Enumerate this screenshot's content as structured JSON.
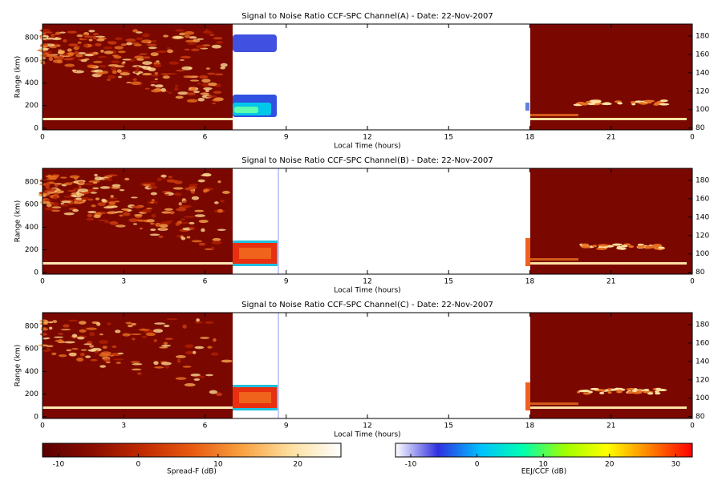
{
  "chart_data": [
    {
      "type": "heatmap",
      "title": "Signal to Noise Ratio CCF-SPC Channel(A) - Date: 22-Nov-2007",
      "xlabel": "Local Time (hours)",
      "ylabel": "Range (km)",
      "xlim": [
        0,
        24
      ],
      "xticks": [
        0,
        3,
        6,
        9,
        12,
        15,
        18,
        21,
        {
          "value": 24,
          "label": "0"
        }
      ],
      "ylim": [
        -15,
        920
      ],
      "yticks": [
        0,
        200,
        400,
        600,
        800
      ],
      "y2lim": [
        78,
        193
      ],
      "y2ticks": [
        80,
        100,
        120,
        140,
        160,
        180
      ]
    },
    {
      "type": "heatmap",
      "title": "Signal to Noise Ratio CCF-SPC Channel(B) - Date: 22-Nov-2007",
      "xlabel": "Local Time (hours)",
      "ylabel": "Range (km)",
      "xlim": [
        0,
        24
      ],
      "xticks": [
        0,
        3,
        6,
        9,
        12,
        15,
        18,
        21,
        {
          "value": 24,
          "label": "0"
        }
      ],
      "ylim": [
        -15,
        920
      ],
      "yticks": [
        0,
        200,
        400,
        600,
        800
      ],
      "y2lim": [
        78,
        193
      ],
      "y2ticks": [
        80,
        100,
        120,
        140,
        160,
        180
      ]
    },
    {
      "type": "heatmap",
      "title": "Signal to Noise Ratio CCF-SPC Channel(C) - Date: 22-Nov-2007",
      "xlabel": "Local Time (hours)",
      "ylabel": "Range (km)",
      "xlim": [
        0,
        24
      ],
      "xticks": [
        0,
        3,
        6,
        9,
        12,
        15,
        18,
        21,
        {
          "value": 24,
          "label": "0"
        }
      ],
      "ylim": [
        -15,
        920
      ],
      "yticks": [
        0,
        200,
        400,
        600,
        800
      ],
      "y2lim": [
        78,
        193
      ],
      "y2ticks": [
        80,
        100,
        120,
        140,
        160,
        180
      ]
    },
    {
      "type": "colorbar",
      "label": "Spread-F (dB)",
      "xlim": [
        -12,
        25.4
      ],
      "xticks": [
        -10,
        0,
        10,
        20
      ],
      "colors": [
        "#5a0000",
        "#8a0c00",
        "#c02a00",
        "#e85a10",
        "#f8a040",
        "#fde0a0",
        "#ffffff"
      ]
    },
    {
      "type": "colorbar",
      "label": "EEJ/CCF (dB)",
      "xlim": [
        -12.3,
        32.5
      ],
      "xticks": [
        -10,
        0,
        10,
        20,
        30
      ],
      "colors": [
        "#ffffff",
        "#3030e0",
        "#00c0ff",
        "#00ffb0",
        "#a0ff00",
        "#ffff00",
        "#ff8000",
        "#ff0000"
      ]
    }
  ]
}
